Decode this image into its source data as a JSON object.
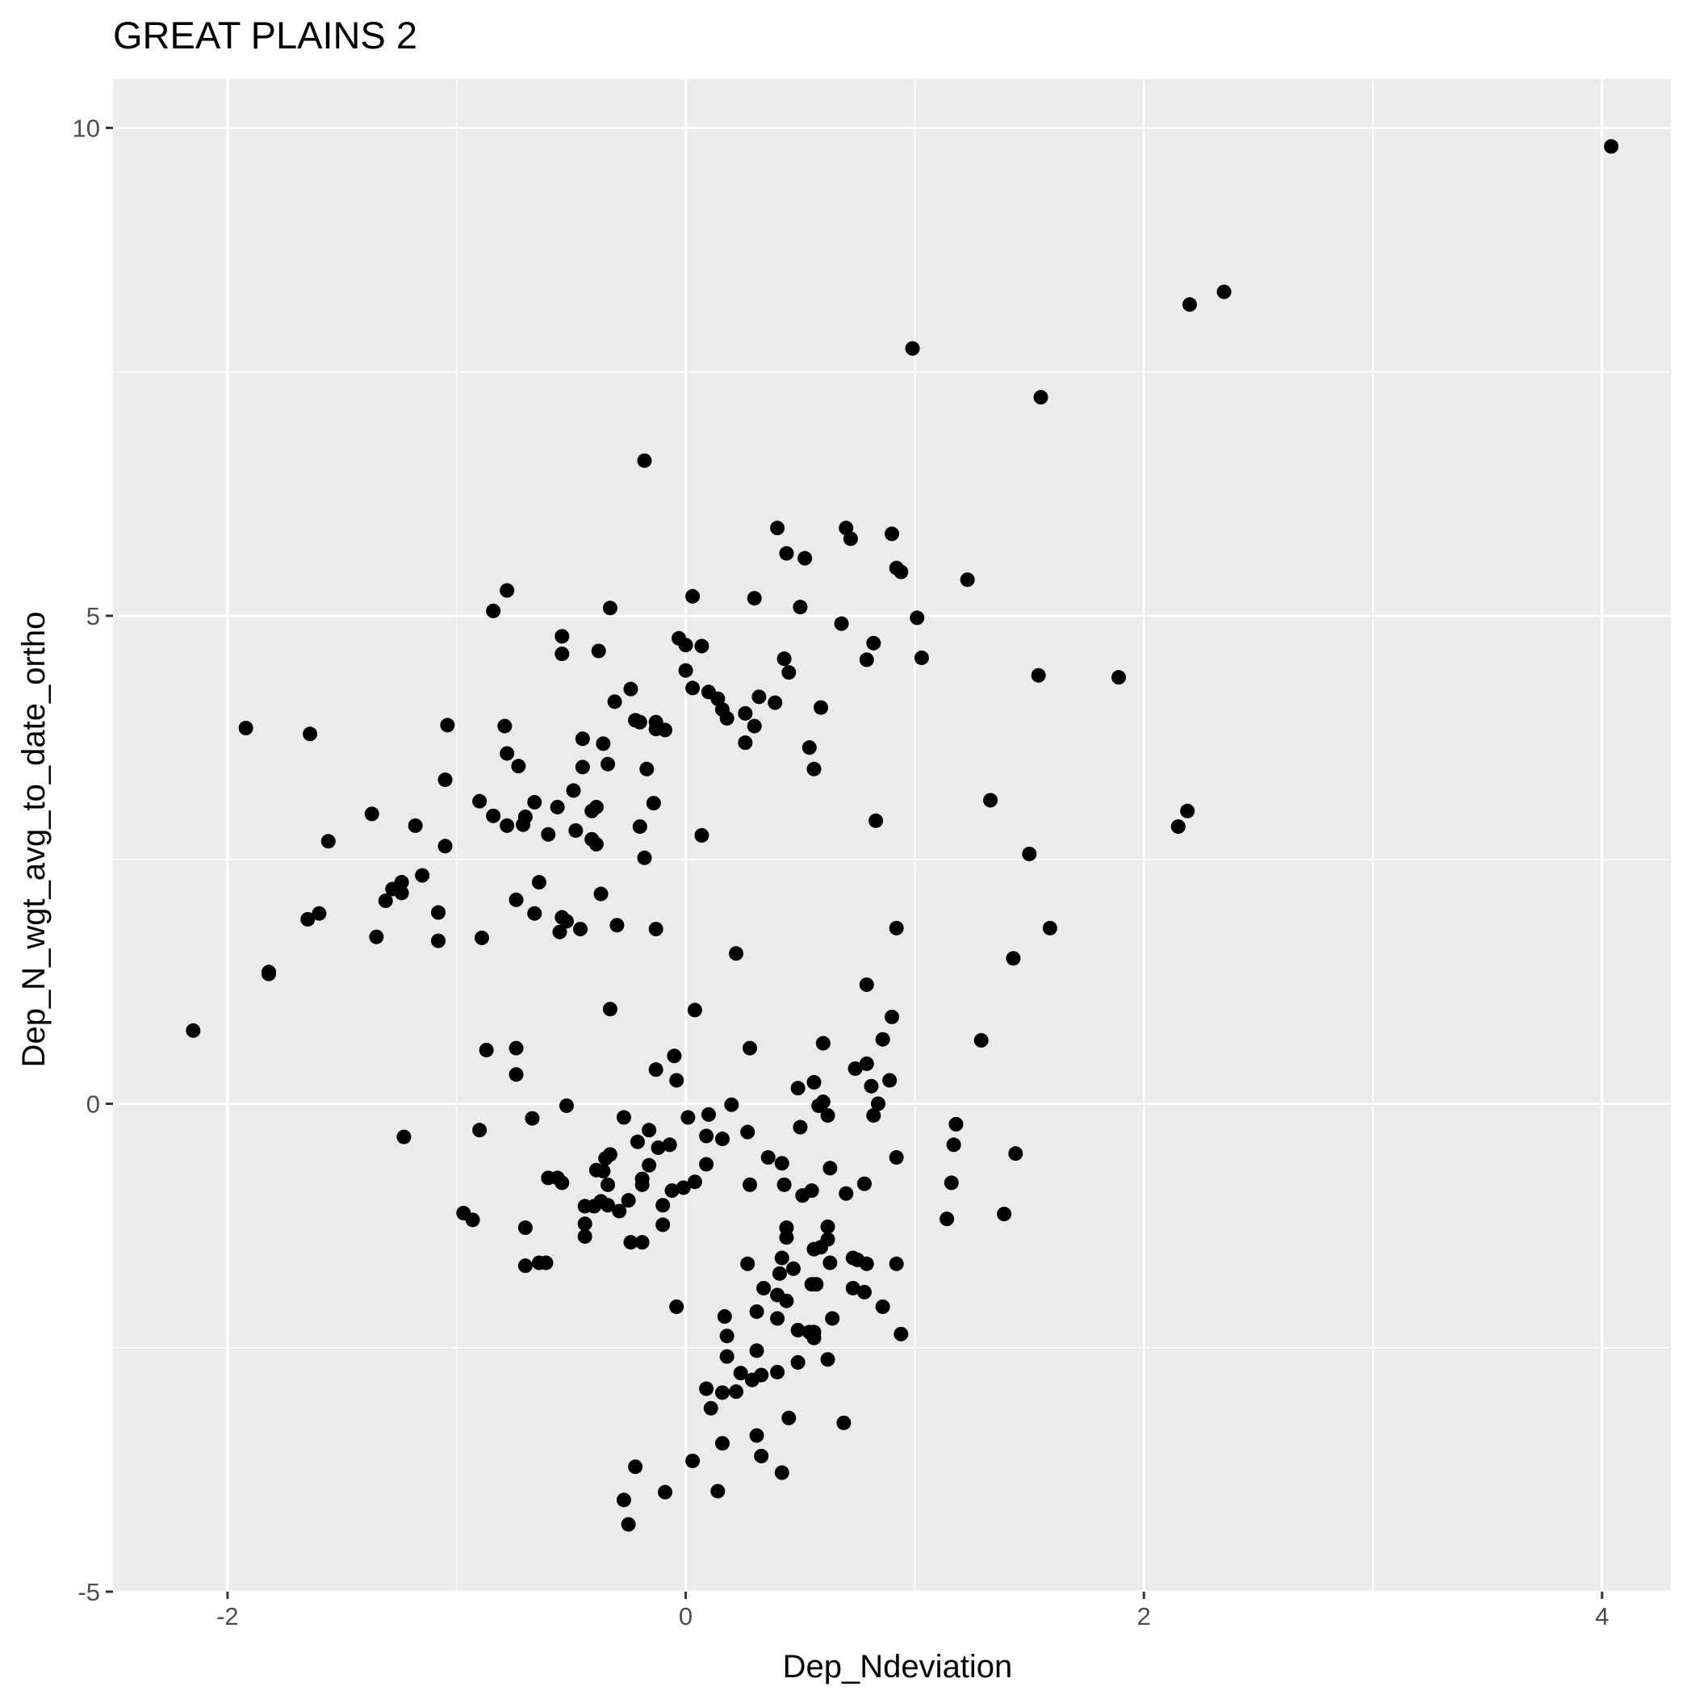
{
  "chart_data": {
    "type": "scatter",
    "title": "GREAT PLAINS 2",
    "xlabel": "Dep_Ndeviation",
    "ylabel": "Dep_N_wgt_avg_to_date_ortho",
    "xlim": [
      -2.5,
      4.3
    ],
    "ylim": [
      -5.0,
      10.5
    ],
    "x_ticks": [
      {
        "value": -2,
        "label": "-2"
      },
      {
        "value": 0,
        "label": "0"
      },
      {
        "value": 2,
        "label": "2"
      },
      {
        "value": 4,
        "label": "4"
      }
    ],
    "y_ticks": [
      {
        "value": -5,
        "label": "-5"
      },
      {
        "value": 0,
        "label": "0"
      },
      {
        "value": 5,
        "label": "5"
      },
      {
        "value": 10,
        "label": "10"
      }
    ],
    "grid": true,
    "colors": {
      "panel": "#ebebeb",
      "grid": "#ffffff",
      "point": "#000000",
      "tick_text": "#4d4d4d"
    },
    "points": [
      [
        4.04,
        9.81
      ],
      [
        2.35,
        8.32
      ],
      [
        2.2,
        8.19
      ],
      [
        0.99,
        7.74
      ],
      [
        1.55,
        7.24
      ],
      [
        -0.18,
        6.59
      ],
      [
        0.4,
        5.9
      ],
      [
        0.7,
        5.9
      ],
      [
        0.72,
        5.79
      ],
      [
        0.9,
        5.84
      ],
      [
        0.44,
        5.64
      ],
      [
        0.52,
        5.59
      ],
      [
        0.92,
        5.49
      ],
      [
        0.94,
        5.45
      ],
      [
        1.23,
        5.37
      ],
      [
        0.03,
        5.2
      ],
      [
        0.3,
        5.18
      ],
      [
        0.5,
        5.09
      ],
      [
        -0.33,
        5.08
      ],
      [
        -0.84,
        5.05
      ],
      [
        -0.78,
        5.26
      ],
      [
        0.68,
        4.92
      ],
      [
        1.01,
        4.98
      ],
      [
        -0.54,
        4.79
      ],
      [
        -0.03,
        4.77
      ],
      [
        0.0,
        4.7
      ],
      [
        0.07,
        4.69
      ],
      [
        0.82,
        4.72
      ],
      [
        -0.54,
        4.61
      ],
      [
        -0.38,
        4.64
      ],
      [
        0.43,
        4.56
      ],
      [
        0.79,
        4.55
      ],
      [
        1.03,
        4.57
      ],
      [
        0.45,
        4.42
      ],
      [
        0.0,
        4.44
      ],
      [
        1.54,
        4.39
      ],
      [
        1.89,
        4.37
      ],
      [
        0.03,
        4.26
      ],
      [
        0.1,
        4.22
      ],
      [
        -0.24,
        4.25
      ],
      [
        0.14,
        4.15
      ],
      [
        0.32,
        4.17
      ],
      [
        -0.31,
        4.12
      ],
      [
        0.39,
        4.11
      ],
      [
        0.16,
        4.04
      ],
      [
        0.59,
        4.06
      ],
      [
        0.26,
        4.0
      ],
      [
        -0.22,
        3.93
      ],
      [
        0.18,
        3.95
      ],
      [
        -0.2,
        3.91
      ],
      [
        -0.13,
        3.91
      ],
      [
        -0.13,
        3.84
      ],
      [
        -0.09,
        3.83
      ],
      [
        0.3,
        3.87
      ],
      [
        -0.79,
        3.87
      ],
      [
        -1.04,
        3.88
      ],
      [
        -1.92,
        3.85
      ],
      [
        -1.64,
        3.79
      ],
      [
        -0.45,
        3.74
      ],
      [
        -0.36,
        3.69
      ],
      [
        0.26,
        3.7
      ],
      [
        0.54,
        3.65
      ],
      [
        -0.78,
        3.59
      ],
      [
        -0.45,
        3.45
      ],
      [
        -0.34,
        3.48
      ],
      [
        -0.73,
        3.46
      ],
      [
        -0.17,
        3.43
      ],
      [
        0.56,
        3.43
      ],
      [
        -1.05,
        3.32
      ],
      [
        -0.49,
        3.21
      ],
      [
        -0.9,
        3.1
      ],
      [
        -0.66,
        3.09
      ],
      [
        -0.14,
        3.08
      ],
      [
        -0.56,
        3.04
      ],
      [
        -0.39,
        3.04
      ],
      [
        -0.41,
        3.0
      ],
      [
        1.33,
        3.11
      ],
      [
        2.19,
        3.0
      ],
      [
        -1.37,
        2.97
      ],
      [
        -0.84,
        2.95
      ],
      [
        -0.7,
        2.94
      ],
      [
        -0.78,
        2.85
      ],
      [
        -0.71,
        2.86
      ],
      [
        -1.18,
        2.85
      ],
      [
        -0.2,
        2.84
      ],
      [
        0.83,
        2.9
      ],
      [
        2.15,
        2.84
      ],
      [
        -0.48,
        2.8
      ],
      [
        -0.6,
        2.76
      ],
      [
        0.07,
        2.75
      ],
      [
        -0.41,
        2.71
      ],
      [
        -0.39,
        2.66
      ],
      [
        -1.56,
        2.69
      ],
      [
        -1.05,
        2.64
      ],
      [
        1.5,
        2.56
      ],
      [
        -0.18,
        2.52
      ],
      [
        -1.15,
        2.34
      ],
      [
        -1.24,
        2.27
      ],
      [
        -1.28,
        2.2
      ],
      [
        -1.24,
        2.16
      ],
      [
        -0.64,
        2.27
      ],
      [
        -0.37,
        2.15
      ],
      [
        -0.74,
        2.09
      ],
      [
        -1.31,
        2.08
      ],
      [
        -0.66,
        1.95
      ],
      [
        -1.08,
        1.96
      ],
      [
        -1.6,
        1.95
      ],
      [
        -1.65,
        1.89
      ],
      [
        -0.54,
        1.91
      ],
      [
        -0.52,
        1.87
      ],
      [
        -0.3,
        1.83
      ],
      [
        -0.46,
        1.79
      ],
      [
        -0.13,
        1.79
      ],
      [
        -0.55,
        1.76
      ],
      [
        -1.35,
        1.71
      ],
      [
        -0.89,
        1.7
      ],
      [
        -1.08,
        1.67
      ],
      [
        0.92,
        1.8
      ],
      [
        1.59,
        1.8
      ],
      [
        0.22,
        1.54
      ],
      [
        1.43,
        1.49
      ],
      [
        -1.82,
        1.35
      ],
      [
        -1.82,
        1.33
      ],
      [
        0.79,
        1.22
      ],
      [
        -0.33,
        0.97
      ],
      [
        0.04,
        0.96
      ],
      [
        0.9,
        0.89
      ],
      [
        -2.15,
        0.75
      ],
      [
        1.29,
        0.65
      ],
      [
        0.6,
        0.62
      ],
      [
        0.86,
        0.66
      ],
      [
        -0.87,
        0.55
      ],
      [
        -0.74,
        0.57
      ],
      [
        0.28,
        0.57
      ],
      [
        -0.05,
        0.49
      ],
      [
        0.79,
        0.41
      ],
      [
        0.74,
        0.36
      ],
      [
        -0.13,
        0.35
      ],
      [
        -0.74,
        0.3
      ],
      [
        0.89,
        0.24
      ],
      [
        -0.04,
        0.24
      ],
      [
        0.56,
        0.22
      ],
      [
        0.81,
        0.18
      ],
      [
        0.49,
        0.16
      ],
      [
        0.84,
        0.0
      ],
      [
        0.58,
        -0.02
      ],
      [
        0.6,
        0.02
      ],
      [
        -0.52,
        -0.02
      ],
      [
        0.2,
        -0.01
      ],
      [
        0.62,
        -0.12
      ],
      [
        0.82,
        -0.12
      ],
      [
        -0.67,
        -0.15
      ],
      [
        -0.27,
        -0.14
      ],
      [
        0.01,
        -0.14
      ],
      [
        0.1,
        -0.11
      ],
      [
        1.18,
        -0.21
      ],
      [
        0.5,
        -0.24
      ],
      [
        -0.16,
        -0.27
      ],
      [
        0.27,
        -0.29
      ],
      [
        -0.9,
        -0.27
      ],
      [
        -1.23,
        -0.34
      ],
      [
        0.09,
        -0.33
      ],
      [
        0.16,
        -0.36
      ],
      [
        -0.21,
        -0.39
      ],
      [
        -0.12,
        -0.45
      ],
      [
        -0.07,
        -0.42
      ],
      [
        1.17,
        -0.42
      ],
      [
        1.44,
        -0.51
      ],
      [
        -0.33,
        -0.52
      ],
      [
        -0.35,
        -0.56
      ],
      [
        0.36,
        -0.55
      ],
      [
        0.42,
        -0.61
      ],
      [
        0.09,
        -0.62
      ],
      [
        -0.16,
        -0.63
      ],
      [
        0.63,
        -0.66
      ],
      [
        0.92,
        -0.55
      ],
      [
        -0.39,
        -0.68
      ],
      [
        -0.36,
        -0.69
      ],
      [
        -0.6,
        -0.76
      ],
      [
        -0.56,
        -0.76
      ],
      [
        -0.19,
        -0.77
      ],
      [
        -0.54,
        -0.81
      ],
      [
        -0.34,
        -0.83
      ],
      [
        0.04,
        -0.8
      ],
      [
        -0.19,
        -0.83
      ],
      [
        0.28,
        -0.83
      ],
      [
        0.43,
        -0.83
      ],
      [
        0.78,
        -0.82
      ],
      [
        1.16,
        -0.81
      ],
      [
        -0.01,
        -0.86
      ],
      [
        -0.06,
        -0.89
      ],
      [
        0.55,
        -0.89
      ],
      [
        0.51,
        -0.94
      ],
      [
        0.7,
        -0.92
      ],
      [
        -0.37,
        -1.0
      ],
      [
        -0.25,
        -0.99
      ],
      [
        -0.44,
        -1.05
      ],
      [
        -0.4,
        -1.05
      ],
      [
        -0.34,
        -1.04
      ],
      [
        -0.29,
        -1.1
      ],
      [
        -0.1,
        -1.04
      ],
      [
        -0.97,
        -1.12
      ],
      [
        -0.93,
        -1.19
      ],
      [
        1.14,
        -1.18
      ],
      [
        1.39,
        -1.13
      ],
      [
        -0.44,
        -1.23
      ],
      [
        -0.7,
        -1.27
      ],
      [
        -0.1,
        -1.24
      ],
      [
        0.44,
        -1.27
      ],
      [
        0.62,
        -1.26
      ],
      [
        -0.44,
        -1.36
      ],
      [
        -0.24,
        -1.42
      ],
      [
        -0.19,
        -1.42
      ],
      [
        0.44,
        -1.37
      ],
      [
        0.62,
        -1.39
      ],
      [
        0.59,
        -1.47
      ],
      [
        0.56,
        -1.49
      ],
      [
        0.73,
        -1.58
      ],
      [
        0.42,
        -1.58
      ],
      [
        0.75,
        -1.6
      ],
      [
        -0.7,
        -1.66
      ],
      [
        -0.64,
        -1.63
      ],
      [
        -0.61,
        -1.63
      ],
      [
        0.27,
        -1.64
      ],
      [
        0.63,
        -1.63
      ],
      [
        0.79,
        -1.64
      ],
      [
        0.92,
        -1.64
      ],
      [
        0.47,
        -1.69
      ],
      [
        0.41,
        -1.74
      ],
      [
        0.55,
        -1.85
      ],
      [
        0.57,
        -1.85
      ],
      [
        0.34,
        -1.89
      ],
      [
        0.73,
        -1.89
      ],
      [
        0.78,
        -1.93
      ],
      [
        0.4,
        -1.96
      ],
      [
        0.44,
        -2.02
      ],
      [
        0.86,
        -2.08
      ],
      [
        -0.04,
        -2.08
      ],
      [
        0.31,
        -2.13
      ],
      [
        0.17,
        -2.18
      ],
      [
        0.4,
        -2.2
      ],
      [
        0.64,
        -2.2
      ],
      [
        0.49,
        -2.32
      ],
      [
        0.54,
        -2.34
      ],
      [
        0.56,
        -2.34
      ],
      [
        0.94,
        -2.36
      ],
      [
        0.18,
        -2.38
      ],
      [
        0.56,
        -2.4
      ],
      [
        0.31,
        -2.53
      ],
      [
        0.18,
        -2.59
      ],
      [
        0.62,
        -2.62
      ],
      [
        0.49,
        -2.65
      ],
      [
        0.24,
        -2.76
      ],
      [
        0.4,
        -2.75
      ],
      [
        0.29,
        -2.83
      ],
      [
        0.33,
        -2.78
      ],
      [
        0.09,
        -2.92
      ],
      [
        0.16,
        -2.96
      ],
      [
        0.22,
        -2.95
      ],
      [
        0.11,
        -3.12
      ],
      [
        0.45,
        -3.22
      ],
      [
        0.69,
        -3.27
      ],
      [
        0.16,
        -3.48
      ],
      [
        0.31,
        -3.4
      ],
      [
        0.33,
        -3.61
      ],
      [
        0.03,
        -3.66
      ],
      [
        -0.22,
        -3.72
      ],
      [
        0.42,
        -3.78
      ],
      [
        -0.09,
        -3.98
      ],
      [
        0.14,
        -3.97
      ],
      [
        -0.27,
        -4.06
      ],
      [
        -0.25,
        -4.31
      ]
    ]
  }
}
